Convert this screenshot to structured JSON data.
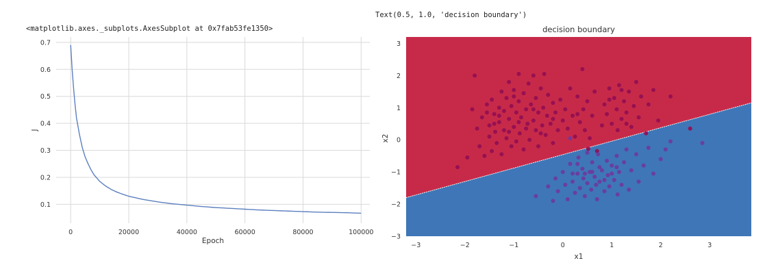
{
  "outputs": {
    "left": "<matplotlib.axes._subplots.AxesSubplot at 0x7fab53fe1350>",
    "right": "Text(0.5, 1.0, 'decision boundary')"
  },
  "colors": {
    "loss_line": "#5b7fbf",
    "grid": "#d9d9d9",
    "region_class0": "#c72a49",
    "region_class1": "#3f76b7",
    "points_class0": "#930e52",
    "points_class1": "#6d3aa0",
    "boundary": "#f2f2f2"
  },
  "chart_data": [
    {
      "type": "line",
      "title": "",
      "xlabel": "Epoch",
      "ylabel": "J",
      "xlim": [
        -5000,
        103000
      ],
      "ylim": [
        0.03,
        0.72
      ],
      "x_ticks": [
        0,
        20000,
        40000,
        60000,
        80000,
        100000
      ],
      "x_tick_labels": [
        "0",
        "20000",
        "40000",
        "60000",
        "80000",
        "100000"
      ],
      "y_ticks": [
        0.1,
        0.2,
        0.3,
        0.4,
        0.5,
        0.6,
        0.7
      ],
      "y_tick_labels": [
        "0.1",
        "0.2",
        "0.3",
        "0.4",
        "0.5",
        "0.6",
        "0.7"
      ],
      "grid": true,
      "series": [
        {
          "x": [
            0,
            500,
            1000,
            1500,
            2000,
            3000,
            4000,
            5000,
            6000,
            7000,
            8000,
            10000,
            12000,
            14000,
            16000,
            18000,
            20000,
            25000,
            30000,
            35000,
            40000,
            45000,
            50000,
            55000,
            60000,
            65000,
            70000,
            75000,
            80000,
            85000,
            90000,
            95000,
            100000
          ],
          "y": [
            0.69,
            0.6,
            0.53,
            0.47,
            0.42,
            0.36,
            0.31,
            0.275,
            0.25,
            0.228,
            0.21,
            0.185,
            0.168,
            0.155,
            0.145,
            0.137,
            0.13,
            0.118,
            0.109,
            0.102,
            0.097,
            0.092,
            0.088,
            0.085,
            0.082,
            0.079,
            0.077,
            0.075,
            0.073,
            0.071,
            0.07,
            0.069,
            0.067
          ]
        }
      ]
    },
    {
      "type": "scatter",
      "title": "decision boundary",
      "xlabel": "x1",
      "ylabel": "x2",
      "xlim": [
        -3.2,
        3.85
      ],
      "ylim": [
        -3.0,
        3.2
      ],
      "x_ticks": [
        -3,
        -2,
        -1,
        0,
        1,
        2,
        3
      ],
      "x_tick_labels": [
        "−3",
        "−2",
        "−1",
        "0",
        "1",
        "2",
        "3"
      ],
      "y_ticks": [
        -3,
        -2,
        -1,
        0,
        1,
        2,
        3
      ],
      "y_tick_labels": [
        "−3",
        "−2",
        "−1",
        "0",
        "1",
        "2",
        "3"
      ],
      "grid": false,
      "decision_boundary": {
        "p1": [
          -3.2,
          -1.8
        ],
        "p2": [
          3.85,
          1.15
        ]
      },
      "series": [
        {
          "points": [
            [
              -2.15,
              -0.85
            ],
            [
              -1.95,
              -0.55
            ],
            [
              -1.85,
              0.95
            ],
            [
              -1.75,
              0.35
            ],
            [
              -1.8,
              2.0
            ],
            [
              -1.7,
              -0.2
            ],
            [
              -1.65,
              0.7
            ],
            [
              -1.6,
              -0.5
            ],
            [
              -1.55,
              1.1
            ],
            [
              -1.5,
              0.1
            ],
            [
              -1.5,
              0.45
            ],
            [
              -1.45,
              1.25
            ],
            [
              -1.45,
              -0.35
            ],
            [
              -1.4,
              0.8
            ],
            [
              -1.38,
              0.25
            ],
            [
              -1.35,
              -0.1
            ],
            [
              -1.3,
              1.0
            ],
            [
              -1.3,
              0.55
            ],
            [
              -1.25,
              1.5
            ],
            [
              -1.25,
              -0.45
            ],
            [
              -1.2,
              0.3
            ],
            [
              -1.2,
              0.9
            ],
            [
              -1.15,
              0.05
            ],
            [
              -1.15,
              1.3
            ],
            [
              -1.1,
              0.65
            ],
            [
              -1.1,
              1.8
            ],
            [
              -1.05,
              -0.2
            ],
            [
              -1.05,
              1.05
            ],
            [
              -1.0,
              0.4
            ],
            [
              -1.0,
              1.55
            ],
            [
              -0.95,
              0.85
            ],
            [
              -0.95,
              -0.05
            ],
            [
              -0.9,
              2.05
            ],
            [
              -0.9,
              1.2
            ],
            [
              -0.88,
              0.2
            ],
            [
              -0.85,
              0.7
            ],
            [
              -0.8,
              1.45
            ],
            [
              -0.8,
              -0.3
            ],
            [
              -0.75,
              0.95
            ],
            [
              -0.72,
              0.5
            ],
            [
              -0.7,
              1.75
            ],
            [
              -0.68,
              0.0
            ],
            [
              -0.65,
              1.1
            ],
            [
              -0.6,
              0.6
            ],
            [
              -0.6,
              2.0
            ],
            [
              -0.55,
              0.3
            ],
            [
              -0.55,
              1.3
            ],
            [
              -0.5,
              0.85
            ],
            [
              -0.5,
              -0.2
            ],
            [
              -0.45,
              1.6
            ],
            [
              -0.42,
              0.45
            ],
            [
              -0.4,
              1.0
            ],
            [
              -0.38,
              2.05
            ],
            [
              -0.35,
              0.15
            ],
            [
              -0.32,
              0.75
            ],
            [
              -0.3,
              1.4
            ],
            [
              -0.25,
              0.5
            ],
            [
              -0.2,
              1.15
            ],
            [
              -0.2,
              -0.1
            ],
            [
              -0.15,
              0.85
            ],
            [
              -0.1,
              0.3
            ],
            [
              -0.05,
              1.25
            ],
            [
              0.0,
              0.6
            ],
            [
              0.05,
              0.95
            ],
            [
              0.1,
              0.35
            ],
            [
              0.15,
              1.6
            ],
            [
              0.2,
              0.75
            ],
            [
              0.25,
              0.1
            ],
            [
              0.3,
              1.35
            ],
            [
              0.35,
              0.55
            ],
            [
              0.4,
              2.2
            ],
            [
              0.42,
              0.95
            ],
            [
              0.45,
              0.3
            ],
            [
              0.5,
              1.2
            ],
            [
              0.55,
              0.05
            ],
            [
              0.6,
              0.75
            ],
            [
              0.65,
              1.5
            ],
            [
              0.8,
              0.45
            ],
            [
              0.85,
              1.1
            ],
            [
              0.9,
              0.8
            ],
            [
              0.95,
              1.6
            ],
            [
              1.0,
              0.5
            ],
            [
              1.05,
              1.3
            ],
            [
              1.1,
              0.95
            ],
            [
              1.12,
              0.3
            ],
            [
              1.15,
              1.7
            ],
            [
              1.2,
              0.65
            ],
            [
              1.25,
              1.2
            ],
            [
              1.3,
              0.85
            ],
            [
              1.35,
              1.5
            ],
            [
              1.4,
              0.4
            ],
            [
              1.45,
              1.05
            ],
            [
              1.5,
              1.8
            ],
            [
              1.55,
              0.7
            ],
            [
              1.6,
              1.35
            ],
            [
              1.7,
              0.2
            ],
            [
              1.75,
              1.1
            ],
            [
              1.85,
              1.55
            ],
            [
              1.95,
              0.6
            ],
            [
              2.2,
              1.35
            ],
            [
              2.6,
              0.35
            ],
            [
              0.7,
              -0.35
            ],
            [
              0.52,
              -0.28
            ],
            [
              -1.0,
              1.35
            ],
            [
              -0.9,
              0.55
            ],
            [
              -1.3,
              0.75
            ],
            [
              -0.6,
              0.95
            ],
            [
              -1.55,
              0.85
            ],
            [
              -0.75,
              0.35
            ],
            [
              -1.1,
              0.25
            ],
            [
              1.2,
              1.55
            ],
            [
              0.95,
              1.25
            ],
            [
              1.3,
              0.5
            ],
            [
              0.3,
              0.8
            ],
            [
              -0.2,
              0.65
            ],
            [
              -1.4,
              0.5
            ],
            [
              -0.45,
              0.2
            ]
          ],
          "class": 0
        },
        {
          "points": [
            [
              -0.55,
              -1.75
            ],
            [
              -0.3,
              -1.45
            ],
            [
              -0.2,
              -1.9
            ],
            [
              -0.15,
              -1.2
            ],
            [
              -0.1,
              -1.6
            ],
            [
              0.0,
              -1.0
            ],
            [
              0.05,
              -1.4
            ],
            [
              0.1,
              -1.85
            ],
            [
              0.15,
              -0.75
            ],
            [
              0.2,
              -1.3
            ],
            [
              0.25,
              -1.65
            ],
            [
              0.3,
              -1.05
            ],
            [
              0.32,
              -0.55
            ],
            [
              0.35,
              -1.5
            ],
            [
              0.4,
              -0.9
            ],
            [
              0.42,
              -1.2
            ],
            [
              0.45,
              -1.75
            ],
            [
              0.5,
              -0.4
            ],
            [
              0.5,
              -1.35
            ],
            [
              0.55,
              -1.0
            ],
            [
              0.58,
              -1.55
            ],
            [
              0.6,
              -0.7
            ],
            [
              0.65,
              -1.15
            ],
            [
              0.7,
              -1.85
            ],
            [
              0.72,
              -0.45
            ],
            [
              0.75,
              -1.3
            ],
            [
              0.8,
              -0.95
            ],
            [
              0.85,
              -1.6
            ],
            [
              0.9,
              -0.65
            ],
            [
              0.92,
              -1.1
            ],
            [
              0.95,
              -1.45
            ],
            [
              1.0,
              -0.8
            ],
            [
              1.05,
              -1.25
            ],
            [
              1.1,
              -0.5
            ],
            [
              1.12,
              -1.7
            ],
            [
              1.15,
              -1.0
            ],
            [
              1.2,
              -1.4
            ],
            [
              1.25,
              -0.7
            ],
            [
              1.3,
              -0.3
            ],
            [
              1.35,
              -1.55
            ],
            [
              1.4,
              -0.95
            ],
            [
              1.5,
              -0.45
            ],
            [
              1.55,
              -1.3
            ],
            [
              1.65,
              -0.8
            ],
            [
              1.75,
              -0.25
            ],
            [
              1.85,
              -1.05
            ],
            [
              2.0,
              -0.6
            ],
            [
              2.1,
              -0.3
            ],
            [
              2.2,
              -0.05
            ],
            [
              2.85,
              -0.1
            ],
            [
              0.15,
              0.05
            ],
            [
              0.3,
              -0.75
            ],
            [
              0.6,
              -1.0
            ],
            [
              0.75,
              -0.85
            ],
            [
              0.85,
              -1.25
            ],
            [
              0.45,
              -1.05
            ],
            [
              1.0,
              -1.05
            ],
            [
              0.68,
              -1.4
            ],
            [
              0.2,
              -1.05
            ],
            [
              1.1,
              -0.85
            ]
          ],
          "class": 1
        }
      ]
    }
  ]
}
